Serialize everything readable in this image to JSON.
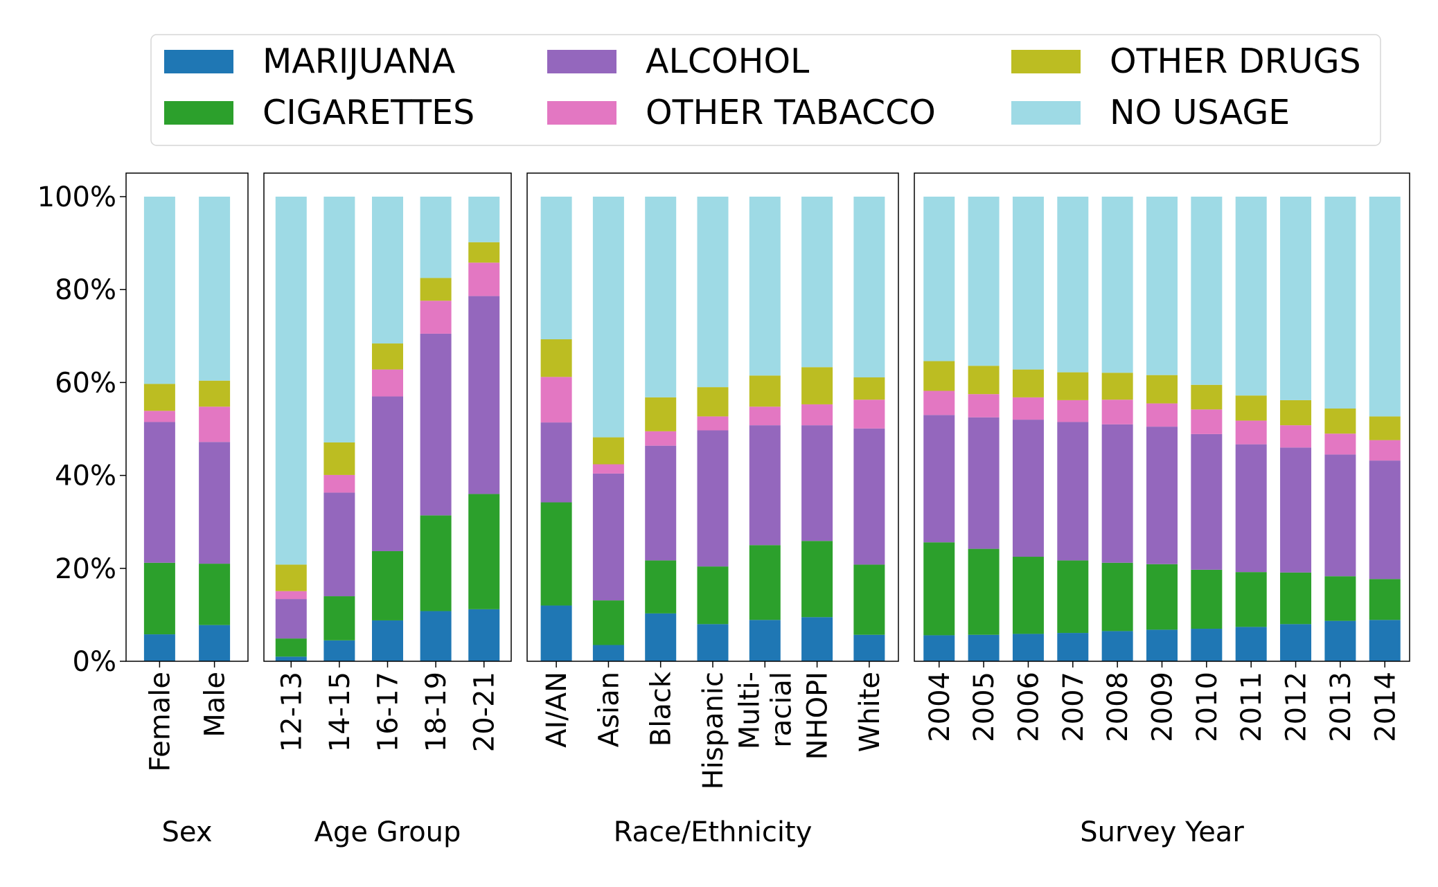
{
  "chart_data": {
    "type": "bar",
    "stacked": true,
    "legend": {
      "placement": "top",
      "entries": [
        {
          "key": "marijuana",
          "label": "MARIJUANA"
        },
        {
          "key": "cigarettes",
          "label": "CIGARETTES"
        },
        {
          "key": "alcohol",
          "label": "ALCOHOL"
        },
        {
          "key": "other_tobacco",
          "label": "OTHER TABACCO"
        },
        {
          "key": "other_drugs",
          "label": "OTHER DRUGS"
        },
        {
          "key": "no_usage",
          "label": "NO USAGE"
        }
      ]
    },
    "colors": {
      "marijuana": "#1f77b4",
      "cigarettes": "#2ca02c",
      "alcohol": "#9467bd",
      "other_tobacco": "#e377c2",
      "other_drugs": "#bcbd22",
      "no_usage": "#9edae5"
    },
    "y_ticks": [
      "0%",
      "20%",
      "40%",
      "60%",
      "80%",
      "100%"
    ],
    "ylim": [
      0,
      105
    ],
    "grid": false,
    "series_order": [
      "marijuana",
      "cigarettes",
      "alcohol",
      "other_tobacco",
      "other_drugs",
      "no_usage"
    ],
    "panels": [
      {
        "title": "Sex",
        "categories": [
          "Female",
          "Male"
        ],
        "values": {
          "marijuana": [
            5.8,
            7.8
          ],
          "cigarettes": [
            15.4,
            13.2
          ],
          "alcohol": [
            30.3,
            26.2
          ],
          "other_tobacco": [
            2.4,
            7.6
          ],
          "other_drugs": [
            5.8,
            5.6
          ],
          "no_usage": [
            40.3,
            39.6
          ]
        }
      },
      {
        "title": "Age Group",
        "categories": [
          "12-13",
          "14-15",
          "16-17",
          "18-19",
          "20-21"
        ],
        "values": {
          "marijuana": [
            1.0,
            4.5,
            8.8,
            10.8,
            11.2
          ],
          "cigarettes": [
            3.9,
            9.5,
            14.9,
            20.6,
            24.8
          ],
          "alcohol": [
            8.5,
            22.3,
            33.3,
            39.1,
            42.6
          ],
          "other_tobacco": [
            1.7,
            3.8,
            5.8,
            7.1,
            7.2
          ],
          "other_drugs": [
            5.7,
            7.0,
            5.6,
            4.9,
            4.4
          ],
          "no_usage": [
            79.2,
            52.9,
            31.6,
            17.5,
            9.8
          ]
        }
      },
      {
        "title": "Race/Ethnicity",
        "categories": [
          "AI/AN",
          "Asian",
          "Black",
          "Hispanic",
          "Multi-\nracial",
          "NHOPI",
          "White"
        ],
        "values": {
          "marijuana": [
            12.0,
            3.5,
            10.3,
            8.0,
            8.9,
            9.5,
            5.7
          ],
          "cigarettes": [
            22.2,
            9.6,
            11.4,
            12.4,
            16.1,
            16.4,
            15.1
          ],
          "alcohol": [
            17.2,
            27.3,
            24.7,
            29.3,
            25.8,
            24.9,
            29.3
          ],
          "other_tobacco": [
            9.8,
            2.0,
            3.1,
            3.0,
            4.0,
            4.5,
            6.2
          ],
          "other_drugs": [
            8.1,
            5.8,
            7.3,
            6.3,
            6.7,
            8.0,
            4.8
          ],
          "no_usage": [
            30.7,
            51.8,
            43.2,
            41.0,
            38.5,
            36.7,
            38.9
          ]
        }
      },
      {
        "title": "Survey Year",
        "categories": [
          "2004",
          "2005",
          "2006",
          "2007",
          "2008",
          "2009",
          "2010",
          "2011",
          "2012",
          "2013",
          "2014"
        ],
        "values": {
          "marijuana": [
            5.6,
            5.7,
            5.9,
            6.1,
            6.5,
            6.8,
            7.0,
            7.4,
            8.0,
            8.7,
            8.9
          ],
          "cigarettes": [
            20.0,
            18.5,
            16.6,
            15.6,
            14.7,
            14.1,
            12.7,
            11.8,
            11.1,
            9.6,
            8.8
          ],
          "alcohol": [
            27.4,
            28.3,
            29.5,
            29.8,
            29.8,
            29.6,
            29.2,
            27.5,
            26.9,
            26.2,
            25.5
          ],
          "other_tobacco": [
            5.2,
            5.0,
            4.8,
            4.7,
            5.3,
            5.0,
            5.3,
            5.1,
            4.8,
            4.5,
            4.4
          ],
          "other_drugs": [
            6.4,
            6.1,
            6.0,
            6.0,
            5.8,
            6.1,
            5.3,
            5.4,
            5.4,
            5.4,
            5.1
          ],
          "no_usage": [
            35.4,
            36.4,
            37.2,
            37.8,
            37.9,
            38.4,
            40.5,
            42.8,
            43.8,
            45.6,
            47.3
          ]
        }
      }
    ]
  }
}
